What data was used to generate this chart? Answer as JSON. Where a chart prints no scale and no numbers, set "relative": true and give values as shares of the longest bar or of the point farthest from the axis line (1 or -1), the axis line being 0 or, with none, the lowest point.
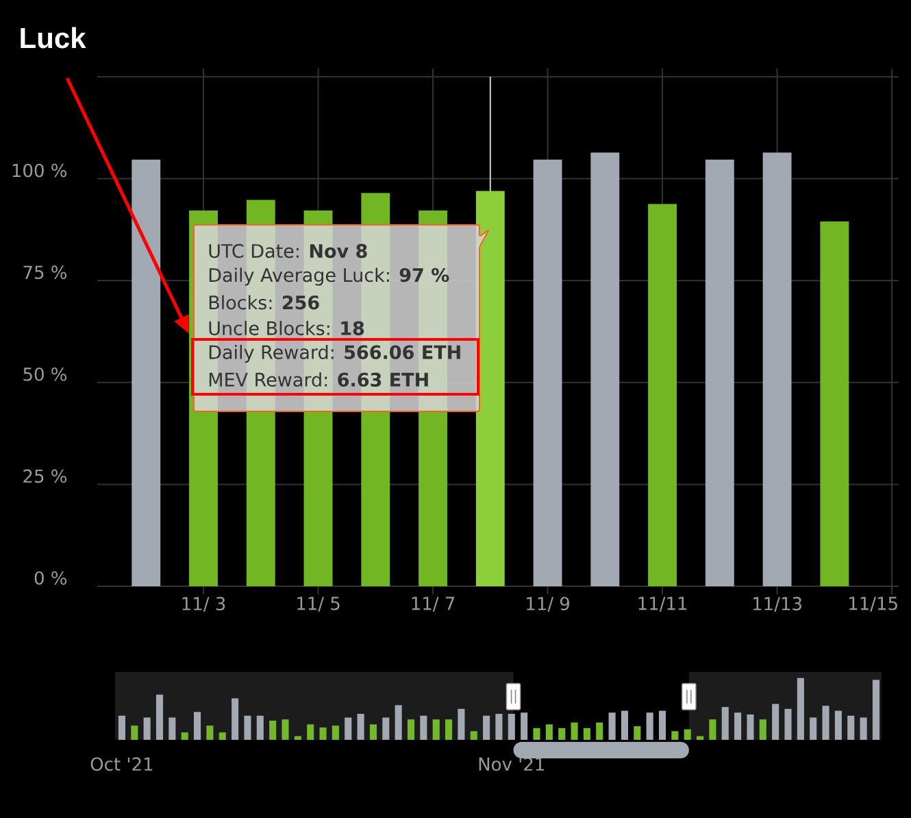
{
  "chart_data": [
    {
      "type": "bar",
      "title": "Luck",
      "x": [
        "2021-11-02",
        "2021-11-03",
        "2021-11-04",
        "2021-11-05",
        "2021-11-06",
        "2021-11-07",
        "2021-11-08",
        "2021-11-09",
        "2021-11-10",
        "2021-11-11",
        "2021-11-12",
        "2021-11-13",
        "2021-11-14"
      ],
      "values": [
        104.7,
        92.2,
        94.8,
        92.2,
        96.5,
        92.2,
        97,
        104.7,
        106.4,
        93.8,
        104.7,
        106.4,
        89.5
      ],
      "colors": [
        "#a2a9b3",
        "#73b623",
        "#73b623",
        "#73b623",
        "#73b623",
        "#73b623",
        "#8dcf3a",
        "#a2a9b3",
        "#a2a9b3",
        "#73b623",
        "#a2a9b3",
        "#a2a9b3",
        "#73b623"
      ],
      "xlim": [
        "2021-11-01T03:35",
        "2021-11-15T02:50"
      ],
      "ylim": [
        0,
        125
      ],
      "xticks": [
        {
          "value": "2021-11-03",
          "label": "11/ 3"
        },
        {
          "value": "2021-11-05",
          "label": "11/ 5"
        },
        {
          "value": "2021-11-07",
          "label": "11/ 7"
        },
        {
          "value": "2021-11-09",
          "label": "11/ 9"
        },
        {
          "value": "2021-11-11",
          "label": "11/11"
        },
        {
          "value": "2021-11-13",
          "label": "11/13"
        },
        {
          "value": "2021-11-15",
          "label": "11/15"
        }
      ],
      "yticks": [
        {
          "value": 0,
          "label": "0 %"
        },
        {
          "value": 25,
          "label": "25 %"
        },
        {
          "value": 50,
          "label": "50 %"
        },
        {
          "value": 75,
          "label": "75 %"
        },
        {
          "value": 100,
          "label": "100 %"
        },
        {
          "value": 125,
          "label": null
        }
      ],
      "grid": true,
      "ref_lines": [
        {
          "axis": "x",
          "value": "2021-11-08",
          "color": "#d0d0d0"
        }
      ],
      "annotations": [
        "UTC Date: **Nov 8**",
        "Daily Average Luck: **97 %**",
        "Blocks: **256**",
        "Uncle Blocks: **18**",
        "Daily Reward: **566.06 ETH**",
        "MEV Reward: **6.63 ETH**"
      ]
    },
    {
      "type": "bar",
      "relative": true,
      "x": [
        "2021-10-01",
        "2021-10-02",
        "2021-10-03",
        "2021-10-04",
        "2021-10-05",
        "2021-10-06",
        "2021-10-07",
        "2021-10-08",
        "2021-10-09",
        "2021-10-10",
        "2021-10-11",
        "2021-10-12",
        "2021-10-13",
        "2021-10-14",
        "2021-10-15",
        "2021-10-16",
        "2021-10-17",
        "2021-10-18",
        "2021-10-19",
        "2021-10-20",
        "2021-10-21",
        "2021-10-22",
        "2021-10-23",
        "2021-10-24",
        "2021-10-25",
        "2021-10-26",
        "2021-10-27",
        "2021-10-28",
        "2021-10-29",
        "2021-10-30",
        "2021-10-31",
        "2021-11-01",
        "2021-11-02",
        "2021-11-03",
        "2021-11-04",
        "2021-11-05",
        "2021-11-06",
        "2021-11-07",
        "2021-11-08",
        "2021-11-09",
        "2021-11-10",
        "2021-11-11",
        "2021-11-12",
        "2021-11-13",
        "2021-11-14",
        "2021-11-15",
        "2021-11-16",
        "2021-11-17",
        "2021-11-18",
        "2021-11-19",
        "2021-11-20",
        "2021-11-21",
        "2021-11-22",
        "2021-11-23",
        "2021-11-24",
        "2021-11-25",
        "2021-11-26",
        "2021-11-27",
        "2021-11-28",
        "2021-11-29",
        "2021-11-30"
      ],
      "values": [
        0.39,
        0.23,
        0.36,
        0.73,
        0.36,
        0.12,
        0.45,
        0.23,
        0.12,
        0.67,
        0.39,
        0.39,
        0.31,
        0.33,
        0.06,
        0.25,
        0.2,
        0.23,
        0.36,
        0.42,
        0.25,
        0.36,
        0.56,
        0.33,
        0.39,
        0.33,
        0.33,
        0.5,
        0.14,
        0.39,
        0.42,
        0.42,
        0.44,
        0.19,
        0.25,
        0.19,
        0.28,
        0.19,
        0.28,
        0.44,
        0.47,
        0.22,
        0.44,
        0.47,
        0.14,
        0.17,
        0.06,
        0.33,
        0.53,
        0.44,
        0.41,
        0.33,
        0.58,
        0.5,
        1,
        0.36,
        0.55,
        0.47,
        0.39,
        0.36,
        0.97
      ],
      "colors": [
        "#a2a9b3",
        "#73b72a",
        "#a2a9b3",
        "#a2a9b3",
        "#a2a9b3",
        "#73b72a",
        "#a2a9b3",
        "#73b72a",
        "#73b72a",
        "#a2a9b3",
        "#a2a9b3",
        "#a2a9b3",
        "#73b72a",
        "#73b72a",
        "#73b72a",
        "#73b72a",
        "#73b72a",
        "#73b72a",
        "#a2a9b3",
        "#a2a9b3",
        "#73b72a",
        "#a2a9b3",
        "#a2a9b3",
        "#73b72a",
        "#a2a9b3",
        "#73b72a",
        "#73b72a",
        "#a2a9b3",
        "#73b72a",
        "#a2a9b3",
        "#a2a9b3",
        "#a2a9b3",
        "#a2a9b3",
        "#73b72a",
        "#73b72a",
        "#73b72a",
        "#73b72a",
        "#73b72a",
        "#73b72a",
        "#a2a9b3",
        "#a2a9b3",
        "#73b72a",
        "#a2a9b3",
        "#a2a9b3",
        "#73b72a",
        "#73b72a",
        "#73b72a",
        "#73b72a",
        "#a2a9b3",
        "#a2a9b3",
        "#a2a9b3",
        "#73b72a",
        "#a2a9b3",
        "#a2a9b3",
        "#a2a9b3",
        "#a2a9b3",
        "#a2a9b3",
        "#a2a9b3",
        "#a2a9b3",
        "#a2a9b3",
        "#a2a9b3"
      ],
      "xlim": [
        "2021-09-30T11:00",
        "2021-11-30T10:30"
      ],
      "xticks": [
        {
          "value": "2021-10-01",
          "label": "Oct '21"
        },
        {
          "value": "2021-11-01",
          "label": "Nov '21"
        }
      ],
      "bands": [
        {
          "axis": "x",
          "from": "2021-09-30T11:00",
          "to": "2021-11-01T03:35",
          "color": "#1c1c1c"
        },
        {
          "axis": "x",
          "from": "2021-11-15T02:50",
          "to": "2021-11-30T10:30",
          "color": "#1c1c1c"
        }
      ]
    }
  ]
}
